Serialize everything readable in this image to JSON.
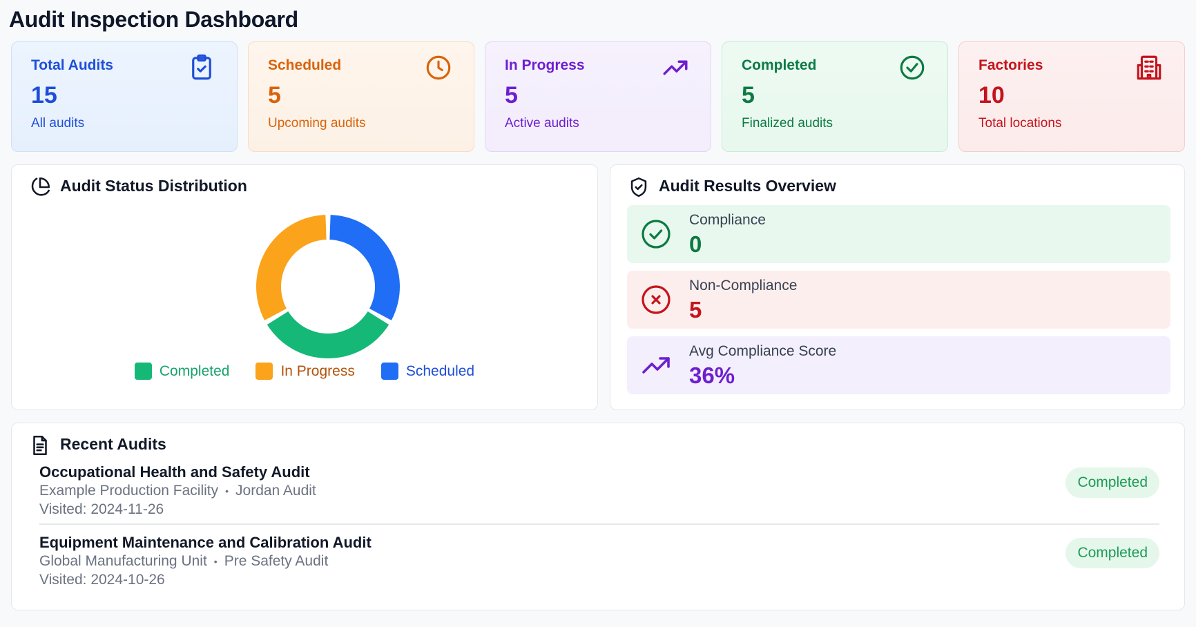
{
  "page": {
    "title": "Audit Inspection Dashboard"
  },
  "stats": [
    {
      "title": "Total Audits",
      "value": "15",
      "subtitle": "All audits",
      "icon": "clipboard-check-icon",
      "color": "#1d4ed8"
    },
    {
      "title": "Scheduled",
      "value": "5",
      "subtitle": "Upcoming audits",
      "icon": "clock-icon",
      "color": "#d9630b"
    },
    {
      "title": "In Progress",
      "value": "5",
      "subtitle": "Active audits",
      "icon": "trending-up-icon",
      "color": "#6d1fd0"
    },
    {
      "title": "Completed",
      "value": "5",
      "subtitle": "Finalized audits",
      "icon": "check-circle-icon",
      "color": "#0c7a43"
    },
    {
      "title": "Factories",
      "value": "10",
      "subtitle": "Total locations",
      "icon": "building-icon",
      "color": "#c4141c"
    }
  ],
  "distribution": {
    "title": "Audit Status Distribution",
    "icon": "pie-chart-icon",
    "legend": [
      {
        "label": "Completed",
        "color": "#16b877",
        "text_color": "#16a36a"
      },
      {
        "label": "In Progress",
        "color": "#fba31b",
        "text_color": "#b45309"
      },
      {
        "label": "Scheduled",
        "color": "#1f6ef5",
        "text_color": "#1d4ed8"
      }
    ]
  },
  "chart_data": {
    "type": "pie",
    "variant": "donut",
    "title": "Audit Status Distribution",
    "categories": [
      "Completed",
      "In Progress",
      "Scheduled"
    ],
    "values": [
      5,
      5,
      5
    ],
    "colors": [
      "#16b877",
      "#fba31b",
      "#1f6ef5"
    ],
    "legend": "bottom"
  },
  "results": {
    "title": "Audit Results Overview",
    "icon": "shield-check-icon",
    "rows": [
      {
        "label": "Compliance",
        "value": "0",
        "icon": "check-circle-icon",
        "color": "#0c7a43"
      },
      {
        "label": "Non-Compliance",
        "value": "5",
        "icon": "x-circle-icon",
        "color": "#c4141c"
      },
      {
        "label": "Avg Compliance Score",
        "value": "36%",
        "icon": "trending-up-icon",
        "color": "#6d1fd0"
      }
    ]
  },
  "recent": {
    "title": "Recent Audits",
    "icon": "document-icon",
    "items": [
      {
        "title": "Occupational Health and Safety Audit",
        "facility": "Example Production Facility",
        "auditor": "Jordan Audit",
        "visited": "Visited: 2024-11-26",
        "status": "Completed",
        "separator": "•"
      },
      {
        "title": "Equipment Maintenance and Calibration Audit",
        "facility": "Global Manufacturing Unit",
        "auditor": "Pre Safety Audit",
        "visited": "Visited: 2024-10-26",
        "status": "Completed",
        "separator": "•"
      }
    ]
  }
}
